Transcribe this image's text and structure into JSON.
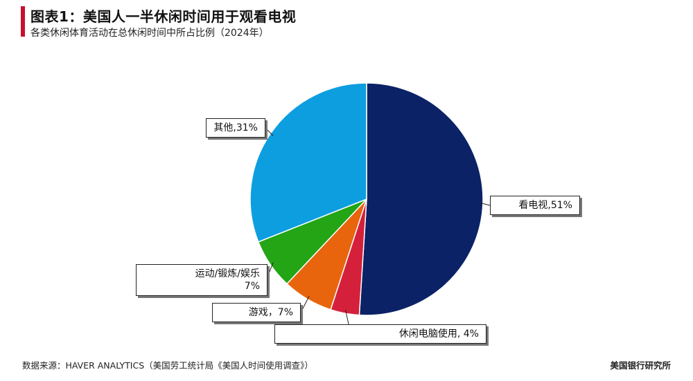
{
  "header": {
    "title": "图表1：美国人一半休闲时间用于观看电视",
    "subtitle": "各类休闲体育活动在总休闲时间中所占比例（2024年）"
  },
  "footer": {
    "source": "数据来源：HAVER ANALYTICS（美国劳工统计局《美国人时间使用调查》）",
    "brand": "美国银行研究所"
  },
  "chart_data": {
    "type": "pie",
    "start": "12 o'clock",
    "direction": "clockwise",
    "slices": [
      {
        "label": "看电视,51%",
        "value": 51,
        "color": "#0c2266"
      },
      {
        "label": "休闲电脑使用, 4%",
        "value": 4,
        "color": "#d5203c"
      },
      {
        "label": "游戏，7%",
        "value": 7,
        "color": "#e8650e"
      },
      {
        "label": "运动/锻炼/娱乐 7%",
        "line1": "运动/锻炼/娱乐",
        "line2": "7%",
        "value": 7,
        "color": "#23a515"
      },
      {
        "label": "其他,31%",
        "value": 31,
        "color": "#0d9ee0"
      }
    ]
  }
}
